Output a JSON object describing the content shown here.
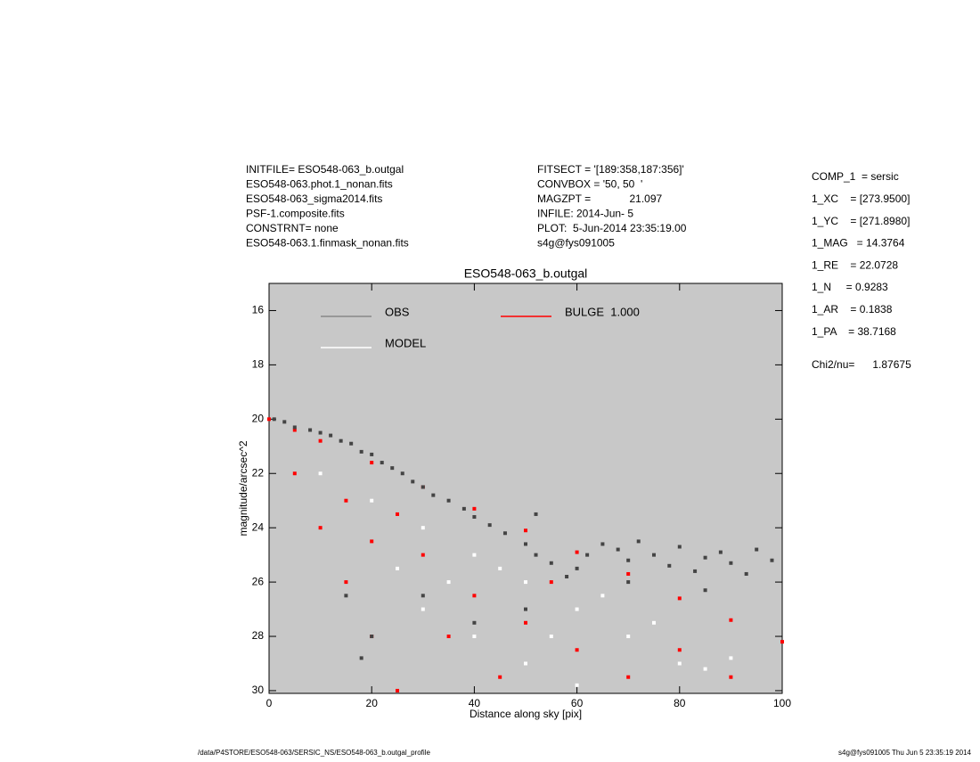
{
  "header_left": [
    "INITFILE= ESO548-063_b.outgal",
    "ESO548-063.phot.1_nonan.fits",
    "ESO548-063_sigma2014.fits",
    "PSF-1.composite.fits",
    "CONSTRNT= none",
    "ESO548-063.1.finmask_nonan.fits"
  ],
  "header_middle": [
    "FITSECT = '[189:358,187:356]'",
    "CONVBOX = '50, 50  '",
    "MAGZPT =             21.097",
    "INFILE: 2014-Jun- 5",
    "PLOT:  5-Jun-2014 23:35:19.00",
    "s4g@fys091005"
  ],
  "fit_parameters": [
    "COMP_1  = sersic",
    "1_XC    = [273.9500]",
    "1_YC    = [271.8980]",
    "1_MAG   = 14.3764",
    "1_RE    = 22.0728",
    "1_N     = 0.9283",
    "1_AR    = 0.1838",
    "1_PA    = 38.7168"
  ],
  "chi2": "Chi2/nu=      1.87675",
  "footer_left": "/data/P4STORE/ESO548-063/SERSIC_NS/ESO548-063_b.outgal_profile",
  "footer_right": "s4g@fys091005  Thu Jun  5 23:35:19 2014",
  "chart_data": {
    "type": "scatter",
    "title": "ESO548-063_b.outgal",
    "xlabel": "Distance along sky [pix]",
    "ylabel": "magnitude/arcsec^2",
    "xlim": [
      0,
      100
    ],
    "ylim": [
      15,
      30.1
    ],
    "y_inverted": true,
    "xticks": [
      0,
      20,
      40,
      60,
      80,
      100
    ],
    "yticks": [
      16,
      18,
      20,
      22,
      24,
      26,
      28,
      30
    ],
    "background": "#c8c8c8",
    "series": [
      {
        "name": "BULGE  1.000",
        "color": "#ff0000",
        "x": [
          0,
          5,
          10,
          20,
          30,
          40,
          50,
          60,
          70,
          80,
          90,
          100,
          5,
          10,
          15,
          20,
          25,
          15,
          20,
          30,
          40,
          50,
          60,
          70,
          35,
          45,
          80,
          90,
          25,
          55
        ],
        "y": [
          20,
          20.4,
          20.8,
          21.6,
          22.5,
          23.3,
          24.1,
          24.9,
          25.7,
          26.6,
          27.4,
          28.2,
          22.0,
          24.0,
          26.0,
          28.0,
          30.0,
          23.0,
          24.5,
          25.0,
          26.5,
          27.5,
          28.5,
          29.5,
          28.0,
          29.5,
          28.5,
          29.5,
          23.5,
          26.0
        ]
      },
      {
        "name": "MODEL",
        "color": "#ffffff",
        "x": [
          10,
          20,
          30,
          40,
          50,
          60,
          70,
          80,
          30,
          40,
          50,
          60,
          90,
          25,
          35,
          45,
          65,
          75,
          85,
          55
        ],
        "y": [
          22,
          23,
          24,
          25,
          26,
          27,
          28,
          29,
          27,
          28,
          29,
          29.8,
          28.8,
          25.5,
          26,
          25.5,
          26.5,
          27.5,
          29.2,
          28
        ]
      },
      {
        "name": "OBS",
        "color": "#444444",
        "x": [
          1,
          3,
          5,
          8,
          10,
          12,
          14,
          16,
          18,
          20,
          22,
          24,
          26,
          28,
          30,
          32,
          35,
          38,
          40,
          43,
          46,
          50,
          52,
          55,
          58,
          60,
          62,
          65,
          68,
          70,
          72,
          75,
          78,
          80,
          83,
          85,
          88,
          90,
          93,
          95,
          98,
          15,
          18,
          20,
          30,
          40,
          50,
          70,
          85,
          52
        ],
        "y": [
          20.0,
          20.1,
          20.3,
          20.4,
          20.5,
          20.6,
          20.8,
          20.9,
          21.2,
          21.3,
          21.6,
          21.8,
          22.0,
          22.3,
          22.5,
          22.8,
          23.0,
          23.3,
          23.6,
          23.9,
          24.2,
          24.6,
          25.0,
          25.3,
          25.8,
          25.5,
          25.0,
          24.6,
          24.8,
          25.2,
          24.5,
          25.0,
          25.4,
          24.7,
          25.6,
          25.1,
          24.9,
          25.3,
          25.7,
          24.8,
          25.2,
          26.5,
          28.8,
          28.0,
          26.5,
          27.5,
          27.0,
          26.0,
          26.3,
          23.5
        ]
      }
    ]
  }
}
